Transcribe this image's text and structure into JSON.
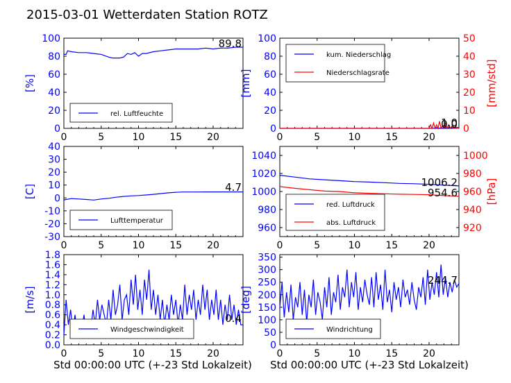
{
  "title": "2015-03-01 Wetterdaten Station ROTZ",
  "xlabel": "Std 00:00:00 UTC (+-23 Std Lokalzeit)",
  "colors": {
    "series1": "#0000ff",
    "series2": "#ff0000",
    "axes": "#000000"
  },
  "chart_data": [
    {
      "type": "line",
      "ylabel": "[%]",
      "xlim": [
        0,
        24
      ],
      "ylim": [
        0,
        100
      ],
      "xticks": [
        "0",
        "5",
        "10",
        "15",
        "20"
      ],
      "yticks": [
        "0",
        "20",
        "40",
        "60",
        "80",
        "100"
      ],
      "legend_position": "bottom-left",
      "current_value": "89.8",
      "series": [
        {
          "name": "rel. Luftfeuchte",
          "color": "#0000ff",
          "x": [
            0,
            0.3,
            0.5,
            1,
            2,
            3,
            4,
            5,
            6,
            6.5,
            7,
            7.5,
            8,
            8.5,
            9,
            9.5,
            10,
            10.5,
            11,
            12,
            13,
            14,
            15,
            16,
            17,
            18,
            19,
            20,
            21,
            22,
            23,
            24
          ],
          "y": [
            82,
            82,
            86,
            85,
            84,
            84,
            83,
            82,
            79,
            78,
            78,
            78,
            79,
            83,
            82,
            84,
            80,
            83,
            83,
            85,
            86,
            87,
            88,
            88,
            88,
            88,
            89,
            88,
            89,
            89,
            90,
            90
          ]
        }
      ]
    },
    {
      "type": "line",
      "ylabel": "[mm]",
      "ylabel2": "[mm/std]",
      "xlim": [
        0,
        24
      ],
      "ylim": [
        0,
        100
      ],
      "ylim2": [
        0,
        50
      ],
      "xticks": [
        "0",
        "5",
        "10",
        "15",
        "20"
      ],
      "yticks": [
        "0",
        "20",
        "40",
        "60",
        "80",
        "100"
      ],
      "yticks2": [
        "0",
        "10",
        "20",
        "30",
        "40",
        "50"
      ],
      "legend_position": "top-left",
      "current_value": "1.0",
      "current_value2": "0.0",
      "series": [
        {
          "name": "kum. Niederschlag",
          "color": "#0000ff",
          "axis": "left",
          "x": [
            0,
            20,
            21,
            22,
            23,
            24
          ],
          "y": [
            0,
            0,
            0.2,
            0.5,
            0.8,
            1.0
          ]
        },
        {
          "name": "Niederschlagsrate",
          "color": "#ff0000",
          "axis": "right",
          "x": [
            0,
            20,
            20.2,
            20.4,
            20.6,
            20.8,
            21.0,
            21.2,
            21.4,
            21.6,
            21.8,
            22.0,
            22.2,
            22.4,
            22.6,
            22.8,
            23.0,
            23.2,
            23.5,
            24
          ],
          "y": [
            0,
            0,
            2,
            0,
            3,
            0,
            2,
            0,
            4,
            0,
            1.5,
            0,
            3,
            0,
            2,
            0,
            1,
            0,
            0,
            0
          ]
        }
      ]
    },
    {
      "type": "line",
      "ylabel": "[C]",
      "xlim": [
        0,
        24
      ],
      "ylim": [
        -30,
        40
      ],
      "xticks": [
        "0",
        "5",
        "10",
        "15",
        "20"
      ],
      "yticks": [
        "-30",
        "-20",
        "-10",
        "0",
        "10",
        "20",
        "30",
        "40"
      ],
      "legend_position": "bottom-left",
      "current_value": "4.7",
      "series": [
        {
          "name": "Lufttemperatur",
          "color": "#0000ff",
          "x": [
            0,
            1,
            2,
            3,
            4,
            5,
            6,
            7,
            8,
            9,
            10,
            11,
            12,
            13,
            14,
            15,
            16,
            17,
            18,
            19,
            20,
            21,
            22,
            23,
            24
          ],
          "y": [
            -1.5,
            -0.5,
            -0.8,
            -1.2,
            -1.6,
            -0.8,
            -0.3,
            0.6,
            1.2,
            1.6,
            1.9,
            2.3,
            2.8,
            3.4,
            4.0,
            4.4,
            4.6,
            4.6,
            4.6,
            4.7,
            4.7,
            4.7,
            4.7,
            4.7,
            4.7
          ]
        }
      ]
    },
    {
      "type": "line",
      "ylabel2": "[hPa]",
      "xlim": [
        0,
        24
      ],
      "ylim": [
        950,
        1050
      ],
      "ylim2": [
        910,
        1010
      ],
      "xticks": [
        "0",
        "5",
        "10",
        "15",
        "20"
      ],
      "yticks": [
        "960",
        "980",
        "1000",
        "1020",
        "1040"
      ],
      "yticks2": [
        "920",
        "940",
        "960",
        "980",
        "1000"
      ],
      "legend_position": "bottom-left",
      "current_value": "1006.2",
      "current_value2": "954.6",
      "series": [
        {
          "name": "red. Luftdruck",
          "color": "#0000ff",
          "axis": "left",
          "x": [
            0,
            2,
            4,
            6,
            8,
            10,
            12,
            14,
            16,
            18,
            20,
            22,
            24
          ],
          "y": [
            1018,
            1016,
            1014,
            1013,
            1012,
            1011,
            1010.5,
            1009.8,
            1009,
            1008.6,
            1008,
            1007,
            1006.2
          ]
        },
        {
          "name": "abs. Luftdruck",
          "color": "#ff0000",
          "axis": "right",
          "x": [
            0,
            2,
            4,
            6,
            8,
            10,
            12,
            14,
            16,
            18,
            20,
            22,
            24
          ],
          "y": [
            965.5,
            963.5,
            962,
            960.5,
            960,
            958.5,
            958,
            957.5,
            957,
            956.8,
            956.5,
            955.5,
            954.6
          ]
        }
      ]
    },
    {
      "type": "line",
      "ylabel": "[m/s]",
      "xlim": [
        0,
        24
      ],
      "ylim": [
        0,
        1.8
      ],
      "xticks": [
        "0",
        "5",
        "10",
        "15",
        "20"
      ],
      "yticks": [
        "0.0",
        "0.2",
        "0.4",
        "0.6",
        "0.8",
        "1.0",
        "1.2",
        "1.4",
        "1.6",
        "1.8"
      ],
      "legend_position": "bottom-left",
      "current_value": "0.4",
      "series": [
        {
          "name": "Windgeschwindigkeit",
          "color": "#0000ff",
          "x": [
            0,
            0.3,
            0.6,
            0.9,
            1.2,
            1.5,
            1.8,
            2.1,
            2.4,
            2.7,
            3.0,
            3.3,
            3.6,
            3.9,
            4.2,
            4.5,
            4.8,
            5.1,
            5.4,
            5.7,
            6.0,
            6.3,
            6.6,
            6.9,
            7.2,
            7.5,
            7.8,
            8.1,
            8.4,
            8.7,
            9.0,
            9.3,
            9.6,
            9.9,
            10.2,
            10.5,
            10.8,
            11.1,
            11.4,
            11.7,
            12.0,
            12.3,
            12.6,
            12.9,
            13.2,
            13.5,
            13.8,
            14.1,
            14.4,
            14.7,
            15.0,
            15.3,
            15.6,
            15.9,
            16.2,
            16.5,
            16.8,
            17.1,
            17.4,
            17.7,
            18.0,
            18.3,
            18.6,
            18.9,
            19.2,
            19.5,
            19.8,
            20.1,
            20.4,
            20.7,
            21.0,
            21.3,
            21.6,
            21.9,
            22.2,
            22.5,
            22.8,
            23.1,
            23.4,
            23.7,
            24.0
          ],
          "y": [
            0.2,
            0.9,
            0.4,
            0.7,
            0.3,
            0.6,
            0.2,
            0.5,
            0.3,
            0.6,
            0.2,
            0.5,
            0.3,
            0.7,
            0.4,
            0.9,
            0.5,
            0.8,
            0.6,
            0.4,
            0.9,
            0.5,
            1.1,
            0.6,
            0.8,
            1.2,
            0.5,
            0.9,
            1.0,
            0.6,
            1.3,
            0.8,
            1.4,
            0.7,
            1.1,
            0.6,
            1.3,
            0.9,
            1.5,
            0.7,
            1.1,
            0.6,
            1.0,
            0.5,
            0.9,
            0.4,
            0.8,
            0.5,
            1.0,
            0.6,
            0.9,
            0.4,
            0.8,
            0.5,
            1.2,
            0.6,
            1.0,
            0.7,
            1.1,
            0.5,
            0.9,
            0.6,
            1.2,
            0.7,
            1.1,
            0.5,
            0.9,
            0.6,
            1.1,
            0.5,
            0.9,
            0.4,
            0.8,
            0.5,
            1.0,
            0.5,
            0.8,
            0.4,
            0.7,
            0.4,
            0.4
          ]
        }
      ]
    },
    {
      "type": "line",
      "ylabel": "[deg]",
      "xlim": [
        0,
        24
      ],
      "ylim": [
        0,
        360
      ],
      "xticks": [
        "0",
        "5",
        "10",
        "15",
        "20"
      ],
      "yticks": [
        "0",
        "50",
        "100",
        "150",
        "200",
        "250",
        "300",
        "350"
      ],
      "legend_position": "bottom-left",
      "current_value": "244.7",
      "series": [
        {
          "name": "Windrichtung",
          "color": "#0000ff",
          "x": [
            0,
            0.3,
            0.6,
            0.9,
            1.2,
            1.5,
            1.8,
            2.1,
            2.4,
            2.7,
            3.0,
            3.3,
            3.6,
            3.9,
            4.2,
            4.5,
            4.8,
            5.1,
            5.4,
            5.7,
            6.0,
            6.3,
            6.6,
            6.9,
            7.2,
            7.5,
            7.8,
            8.1,
            8.4,
            8.7,
            9.0,
            9.3,
            9.6,
            9.9,
            10.2,
            10.5,
            10.8,
            11.1,
            11.4,
            11.7,
            12.0,
            12.3,
            12.6,
            12.9,
            13.2,
            13.5,
            13.8,
            14.1,
            14.4,
            14.7,
            15.0,
            15.3,
            15.6,
            15.9,
            16.2,
            16.5,
            16.8,
            17.1,
            17.4,
            17.7,
            18.0,
            18.3,
            18.6,
            18.9,
            19.2,
            19.5,
            19.8,
            20.1,
            20.4,
            20.7,
            21.0,
            21.3,
            21.6,
            21.9,
            22.2,
            22.5,
            22.8,
            23.1,
            23.4,
            23.7,
            24.0
          ],
          "y": [
            150,
            250,
            110,
            210,
            130,
            240,
            100,
            190,
            150,
            250,
            120,
            220,
            90,
            200,
            150,
            260,
            120,
            210,
            170,
            100,
            230,
            150,
            270,
            120,
            210,
            170,
            280,
            140,
            230,
            190,
            300,
            150,
            250,
            190,
            290,
            140,
            230,
            170,
            260,
            200,
            160,
            270,
            150,
            290,
            180,
            240,
            140,
            300,
            170,
            220,
            130,
            250,
            180,
            230,
            150,
            260,
            190,
            220,
            160,
            250,
            180,
            140,
            230,
            190,
            270,
            160,
            300,
            180,
            250,
            200,
            290,
            190,
            320,
            200,
            270,
            190,
            250,
            210,
            260,
            230,
            245
          ]
        }
      ]
    }
  ]
}
